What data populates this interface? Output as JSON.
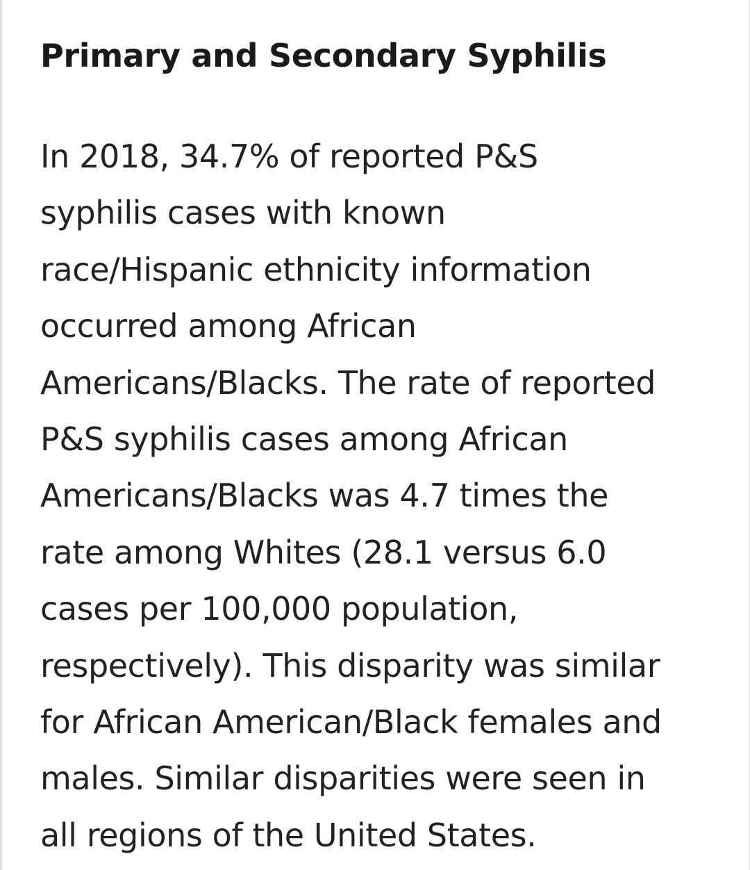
{
  "section": {
    "title": "Primary and Secondary Syphilis",
    "paragraph_lines": [
      "In 2018, 34.7% of reported P&S",
      "syphilis cases with known",
      "race/Hispanic ethnicity information",
      "occurred among African",
      "Americans/Blacks. The rate of reported",
      "P&S syphilis cases among African",
      "Americans/Blacks was 4.7 times the",
      "rate among Whites (28.1 versus 6.0",
      "cases per 100,000 population,",
      "respectively). This disparity was similar",
      "for African American/Black females and",
      "males. Similar disparities were seen in",
      "all regions of the United States."
    ]
  }
}
